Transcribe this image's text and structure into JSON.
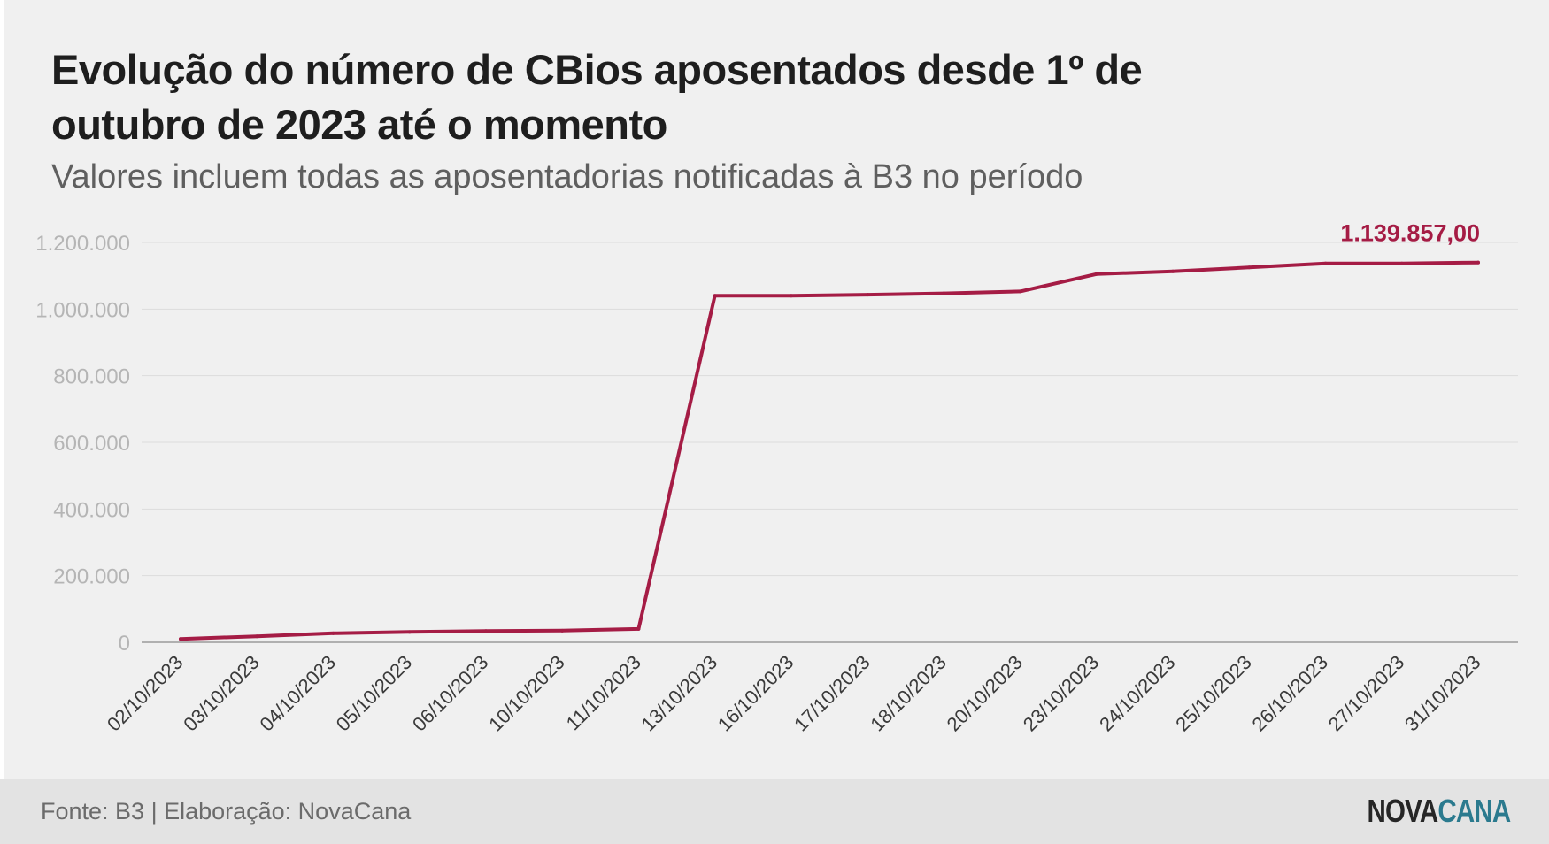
{
  "header": {
    "title": "Evolução do número de CBios aposentados desde 1º de outubro de 2023 até o momento",
    "subtitle": "Valores incluem todas as aposentadorias notificadas à B3 no período"
  },
  "footer": {
    "source": "Fonte: B3 | Elaboração: NovaCana",
    "logo_part1": "NOVA",
    "logo_part2": "CANA"
  },
  "colors": {
    "line": "#a51c45",
    "logo_accent": "#2b7a8e"
  },
  "chart_data": {
    "type": "line",
    "categories": [
      "02/10/2023",
      "03/10/2023",
      "04/10/2023",
      "05/10/2023",
      "06/10/2023",
      "10/10/2023",
      "11/10/2023",
      "13/10/2023",
      "16/10/2023",
      "17/10/2023",
      "18/10/2023",
      "20/10/2023",
      "23/10/2023",
      "24/10/2023",
      "25/10/2023",
      "26/10/2023",
      "27/10/2023",
      "31/10/2023"
    ],
    "series": [
      {
        "values": [
          10000,
          18000,
          27000,
          31000,
          34000,
          35000,
          40000,
          1040000,
          1040000,
          1043000,
          1047000,
          1053000,
          1105000,
          1113000,
          1125000,
          1137000,
          1137000,
          1139857
        ]
      }
    ],
    "ylim": [
      0,
      1200000
    ],
    "yticks": [
      0,
      200000,
      400000,
      600000,
      800000,
      1000000,
      1200000
    ],
    "ytick_labels": [
      "0",
      "200.000",
      "400.000",
      "600.000",
      "800.000",
      "1.000.000",
      "1.200.000"
    ],
    "grid": true,
    "annotation": {
      "index": 17,
      "text": "1.139.857,00"
    }
  }
}
